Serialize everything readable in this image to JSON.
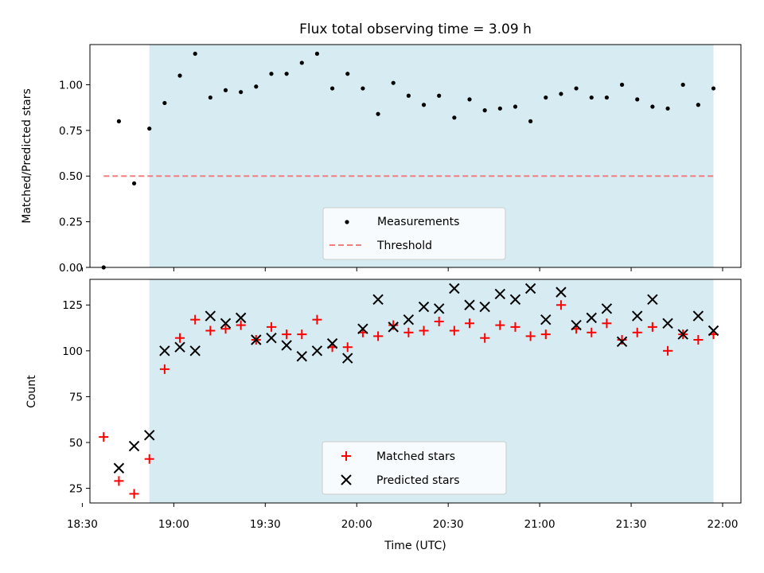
{
  "chart_data": [
    {
      "type": "scatter",
      "title": "Flux total observing time = 3.09 h",
      "xlabel": "",
      "ylabel": "Matched/Predicted stars",
      "ylim": [
        0.0,
        1.22
      ],
      "yticks": [
        0.0,
        0.25,
        0.5,
        0.75,
        1.0
      ],
      "ytick_labels": [
        "0.00",
        "0.25",
        "0.50",
        "0.75",
        "1.00"
      ],
      "xticks": [
        "18:30",
        "19:00",
        "19:30",
        "20:00",
        "20:30",
        "21:00",
        "21:30",
        "22:00"
      ],
      "shaded_span": {
        "start": "18:52",
        "end": "21:57",
        "color": "#add8e6"
      },
      "legend_position": "lower center",
      "series": [
        {
          "name": "Measurements",
          "marker": "dot",
          "color": "#000000",
          "x": [
            "18:37",
            "18:42",
            "18:47",
            "18:52",
            "18:57",
            "19:02",
            "19:07",
            "19:12",
            "19:17",
            "19:22",
            "19:27",
            "19:32",
            "19:37",
            "19:42",
            "19:47",
            "19:52",
            "19:57",
            "20:02",
            "20:07",
            "20:12",
            "20:17",
            "20:22",
            "20:27",
            "20:32",
            "20:37",
            "20:42",
            "20:47",
            "20:52",
            "20:57",
            "21:02",
            "21:07",
            "21:12",
            "21:17",
            "21:22",
            "21:27",
            "21:32",
            "21:37",
            "21:42",
            "21:47",
            "21:52",
            "21:57"
          ],
          "y": [
            0.0,
            0.8,
            0.46,
            0.76,
            0.9,
            1.05,
            1.17,
            0.93,
            0.97,
            0.96,
            0.99,
            1.06,
            1.06,
            1.12,
            1.17,
            0.98,
            1.06,
            0.98,
            0.84,
            1.01,
            0.94,
            0.89,
            0.94,
            0.82,
            0.92,
            0.86,
            0.87,
            0.88,
            0.8,
            0.93,
            0.95,
            0.98,
            0.93,
            0.93,
            1.0,
            0.92,
            0.88,
            0.87,
            1.0,
            0.89,
            0.98
          ]
        },
        {
          "name": "Threshold",
          "style": "dashed",
          "color": "#f08080",
          "x": [
            "18:37",
            "21:57"
          ],
          "y": [
            0.5,
            0.5
          ]
        }
      ]
    },
    {
      "type": "scatter",
      "xlabel": "Time (UTC)",
      "ylabel": "Count",
      "ylim": [
        17,
        139
      ],
      "yticks": [
        25,
        50,
        75,
        100,
        125
      ],
      "ytick_labels": [
        "25",
        "50",
        "75",
        "100",
        "125"
      ],
      "xticks": [
        "18:30",
        "19:00",
        "19:30",
        "20:00",
        "20:30",
        "21:00",
        "21:30",
        "22:00"
      ],
      "shaded_span": {
        "start": "18:52",
        "end": "21:57",
        "color": "#add8e6"
      },
      "legend_position": "lower center",
      "series": [
        {
          "name": "Matched stars",
          "marker": "plus",
          "color": "#ff0000",
          "x": [
            "18:37",
            "18:42",
            "18:47",
            "18:52",
            "18:57",
            "19:02",
            "19:07",
            "19:12",
            "19:17",
            "19:22",
            "19:27",
            "19:32",
            "19:37",
            "19:42",
            "19:47",
            "19:52",
            "19:57",
            "20:02",
            "20:07",
            "20:12",
            "20:17",
            "20:22",
            "20:27",
            "20:32",
            "20:37",
            "20:42",
            "20:47",
            "20:52",
            "20:57",
            "21:02",
            "21:07",
            "21:12",
            "21:17",
            "21:22",
            "21:27",
            "21:32",
            "21:37",
            "21:42",
            "21:47",
            "21:52",
            "21:57"
          ],
          "y": [
            53,
            29,
            22,
            41,
            90,
            107,
            117,
            111,
            112,
            114,
            106,
            113,
            109,
            109,
            117,
            102,
            102,
            110,
            108,
            114,
            110,
            111,
            116,
            111,
            115,
            107,
            114,
            113,
            108,
            109,
            125,
            112,
            110,
            115,
            106,
            110,
            113,
            100,
            109,
            106,
            109
          ]
        },
        {
          "name": "Predicted stars",
          "marker": "x",
          "color": "#000000",
          "x": [
            "18:42",
            "18:47",
            "18:52",
            "18:57",
            "19:02",
            "19:07",
            "19:12",
            "19:17",
            "19:22",
            "19:27",
            "19:32",
            "19:37",
            "19:42",
            "19:47",
            "19:52",
            "19:57",
            "20:02",
            "20:07",
            "20:12",
            "20:17",
            "20:22",
            "20:27",
            "20:32",
            "20:37",
            "20:42",
            "20:47",
            "20:52",
            "20:57",
            "21:02",
            "21:07",
            "21:12",
            "21:17",
            "21:22",
            "21:27",
            "21:32",
            "21:37",
            "21:42",
            "21:47",
            "21:52",
            "21:57"
          ],
          "y": [
            36,
            48,
            54,
            100,
            102,
            100,
            119,
            115,
            118,
            106,
            107,
            103,
            97,
            100,
            104,
            96,
            112,
            128,
            113,
            117,
            124,
            123,
            134,
            125,
            124,
            131,
            128,
            134,
            117,
            132,
            114,
            118,
            123,
            105,
            119,
            128,
            115,
            109,
            119,
            111
          ]
        }
      ]
    }
  ]
}
